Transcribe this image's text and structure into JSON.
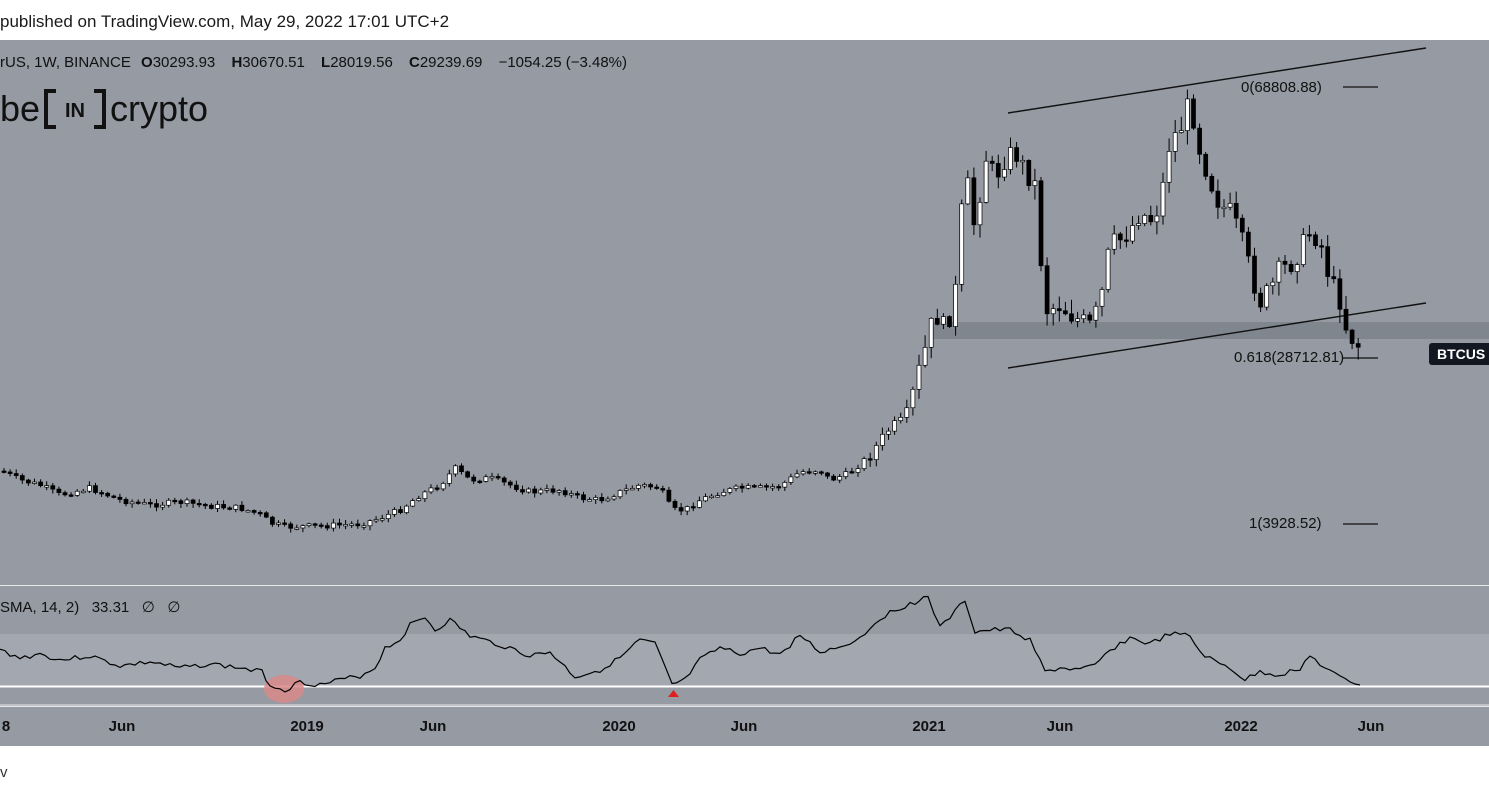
{
  "header": {
    "published": "published on TradingView.com, May 29, 2022 17:01 UTC+2"
  },
  "footer": {
    "watermark": "v"
  },
  "legend": {
    "symbol": "rUS, 1W, BINANCE",
    "open_label": "O",
    "open": "30293.93",
    "high_label": "H",
    "high": "30670.51",
    "low_label": "L",
    "low": "28019.56",
    "close_label": "C",
    "close": "29239.69",
    "change": "−1054.25 (−3.48%)"
  },
  "logo": {
    "left": "be",
    "mid": "IN",
    "right": "crypto"
  },
  "rsi_legend": {
    "label": "SMA, 14, 2)",
    "value": "33.31",
    "extra1": "∅",
    "extra2": "∅"
  },
  "price_tag": "BTCUS",
  "fib_levels": [
    {
      "label": "0(68808.88)",
      "value": 68808.88
    },
    {
      "label": "0.618(28712.81)",
      "value": 28712.81
    },
    {
      "label": "1(3928.52)",
      "value": 3928.52
    }
  ],
  "colors": {
    "chart_bg": "#959aa3",
    "rsi_band": "#a3a7b0",
    "support_zone": "#7d828b",
    "candle_up": "#ffffff",
    "candle_down": "#000000",
    "rsi_line": "#000000",
    "rsi_threshold": "#ffffff",
    "highlight_circle": "#d98a8a",
    "signal_triangle": "#e02020"
  },
  "chart_data": {
    "type": "line",
    "x": [
      "2018-01",
      "2018-06",
      "2019-01",
      "2019-06",
      "2020-01",
      "2020-06",
      "2021-01",
      "2021-06",
      "2022-01",
      "2022-06"
    ],
    "x_tick_labels": [
      "8",
      "Jun",
      "2019",
      "Jun",
      "2020",
      "Jun",
      "2021",
      "Jun",
      "2022",
      "Jun"
    ],
    "series": [
      {
        "values": [
          9000,
          6500,
          3800,
          10500,
          8500,
          9500,
          29000,
          35000,
          47000,
          29240
        ]
      }
    ],
    "rsi_values": [
      45,
      40,
      28,
      72,
      35,
      45,
      82,
      42,
      55,
      33
    ],
    "xlabel": "",
    "ylabel": "",
    "grid": false,
    "legend": "top-left"
  }
}
